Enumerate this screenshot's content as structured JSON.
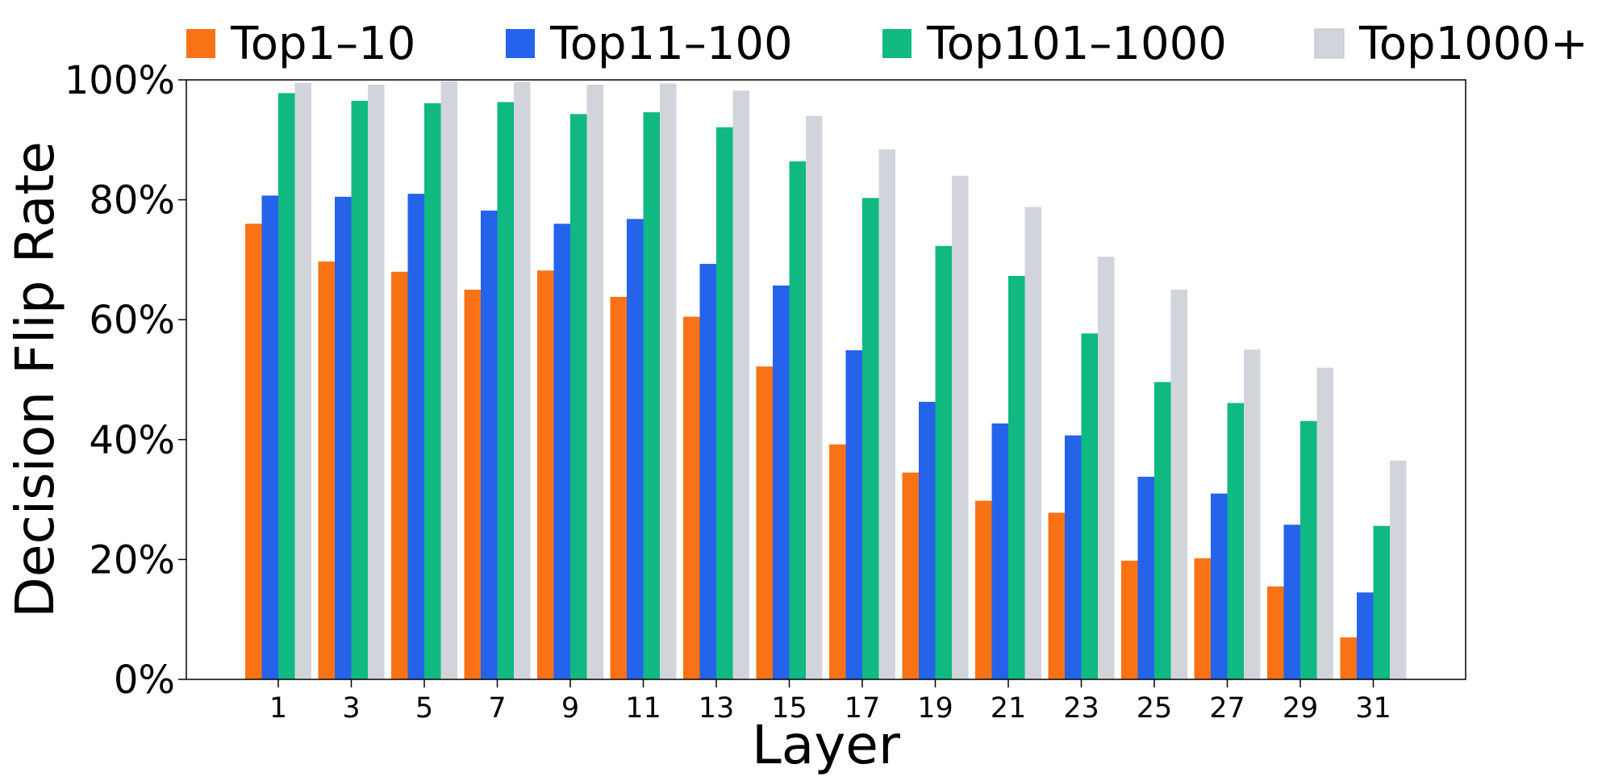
{
  "chart_data": {
    "type": "bar",
    "title": "",
    "xlabel": "Layer",
    "ylabel": "Decision Flip Rate",
    "ylim": [
      0,
      100
    ],
    "y_ticks": [
      "0%",
      "20%",
      "40%",
      "60%",
      "80%",
      "100%"
    ],
    "y_tick_values": [
      0,
      20,
      40,
      60,
      80,
      100
    ],
    "categories": [
      "1",
      "3",
      "5",
      "7",
      "9",
      "11",
      "13",
      "15",
      "17",
      "19",
      "21",
      "23",
      "25",
      "27",
      "29",
      "31"
    ],
    "legend_position": "top",
    "grid": false,
    "series": [
      {
        "name": "Top1–10",
        "color": "#f97316",
        "values": [
          76,
          69.7,
          68,
          65,
          68.2,
          63.8,
          60.5,
          52.2,
          39.2,
          34.5,
          29.8,
          27.8,
          19.8,
          20.2,
          15.5,
          7
        ]
      },
      {
        "name": "Top11–100",
        "color": "#2563eb",
        "values": [
          80.7,
          80.5,
          81,
          78.2,
          76,
          76.8,
          69.3,
          65.7,
          54.9,
          46.3,
          42.7,
          40.7,
          33.8,
          31,
          25.8,
          14.5
        ]
      },
      {
        "name": "Top101–1000",
        "color": "#10b981",
        "values": [
          97.8,
          96.5,
          96.1,
          96.3,
          94.3,
          94.6,
          92.1,
          86.4,
          80.3,
          72.3,
          67.3,
          57.7,
          49.6,
          46.1,
          43.1,
          25.6
        ]
      },
      {
        "name": "Top1000+",
        "color": "#d1d5db",
        "values": [
          99.5,
          99.2,
          99.8,
          99.7,
          99.2,
          99.4,
          98.2,
          94,
          88.4,
          84,
          78.8,
          70.5,
          65,
          55,
          52,
          36.5
        ]
      }
    ]
  }
}
